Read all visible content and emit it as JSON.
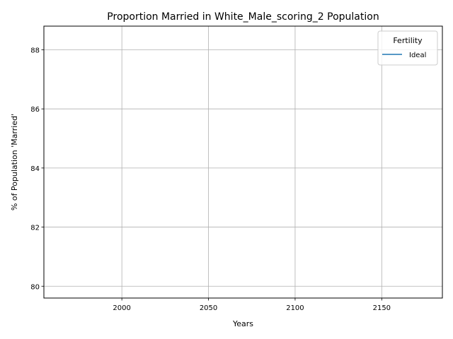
{
  "chart_data": {
    "type": "line",
    "title": "Proportion Married in White_Male_scoring_2 Population",
    "xlabel": "Years",
    "ylabel": "% of Population 'Married'",
    "xlim": [
      1955,
      2185
    ],
    "ylim": [
      79.6,
      88.8
    ],
    "xticks": [
      2000,
      2050,
      2100,
      2150
    ],
    "yticks": [
      80,
      82,
      84,
      86,
      88
    ],
    "grid": true,
    "legend": {
      "title": "Fertility",
      "placement": "top-right"
    },
    "series": [
      {
        "name": "Ideal",
        "color": "#1f77b4",
        "x": [],
        "y": []
      }
    ]
  }
}
